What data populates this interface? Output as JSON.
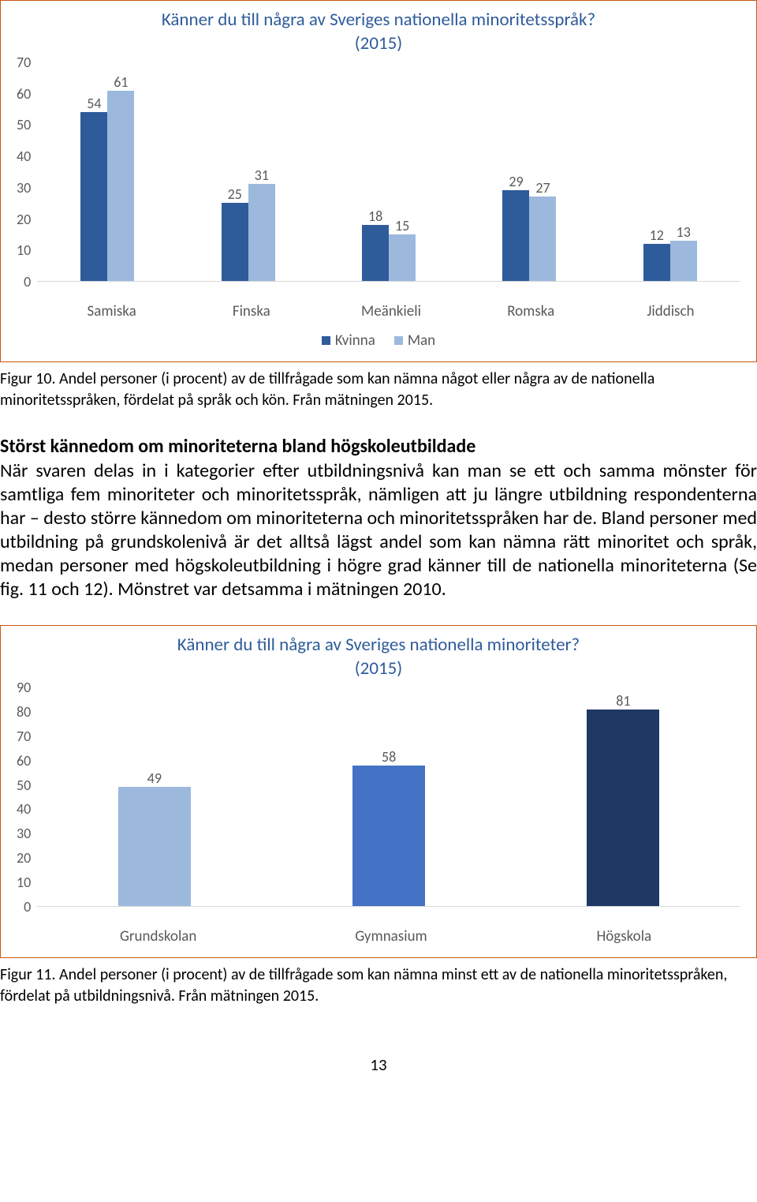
{
  "chart1": {
    "title": "Känner du till några av Sveriges nationella minoritetsspråk?",
    "subtitle": "(2015)",
    "ylim": [
      0,
      70
    ],
    "ytick_step": 10,
    "categories": [
      "Samiska",
      "Finska",
      "Meänkieli",
      "Romska",
      "Jiddisch"
    ],
    "series": [
      {
        "name": "Kvinna",
        "color": "#2e5b9a",
        "values": [
          54,
          25,
          18,
          29,
          12
        ]
      },
      {
        "name": "Man",
        "color": "#9cb9dd",
        "values": [
          61,
          31,
          15,
          27,
          13
        ]
      }
    ],
    "border_color": "#c55a11",
    "text_color": "#595959",
    "title_color": "#2e5b9a"
  },
  "caption1": "Figur 10. Andel personer (i procent) av de tillfrågade som kan nämna något eller några av de nationella minoritetsspråken, fördelat på språk och kön. Från mätningen 2015.",
  "heading": "Störst kännedom om minoriteterna bland högskoleutbildade",
  "body": "När svaren delas in i kategorier efter utbildningsnivå kan man se ett och samma mönster för samtliga fem minoriteter och minoritetsspråk, nämligen att ju längre utbildning respondenterna har – desto större kännedom om minoriteterna och minoritetsspråken har de. Bland personer med utbildning på grundskolenivå är det alltså lägst andel som kan nämna rätt minoritet och språk, medan personer med högskoleutbildning i högre grad känner till de nationella minoriteterna (Se fig. 11 och 12). Mönstret var detsamma i mätningen 2010.",
  "chart2": {
    "title": "Känner du till några av Sveriges nationella minoriteter?",
    "subtitle": "(2015)",
    "ylim": [
      0,
      90
    ],
    "ytick_step": 10,
    "categories": [
      "Grundskolan",
      "Gymnasium",
      "Högskola"
    ],
    "values": [
      49,
      58,
      81
    ],
    "colors": [
      "#9cb9dd",
      "#4472c4",
      "#1f3864"
    ],
    "border_color": "#c55a11",
    "text_color": "#595959",
    "title_color": "#2e5b9a"
  },
  "caption2": "Figur 11. Andel personer (i procent) av de tillfrågade som kan nämna minst ett av de nationella minoritetsspråken, fördelat på utbildningsnivå. Från mätningen 2015.",
  "page_number": "13"
}
